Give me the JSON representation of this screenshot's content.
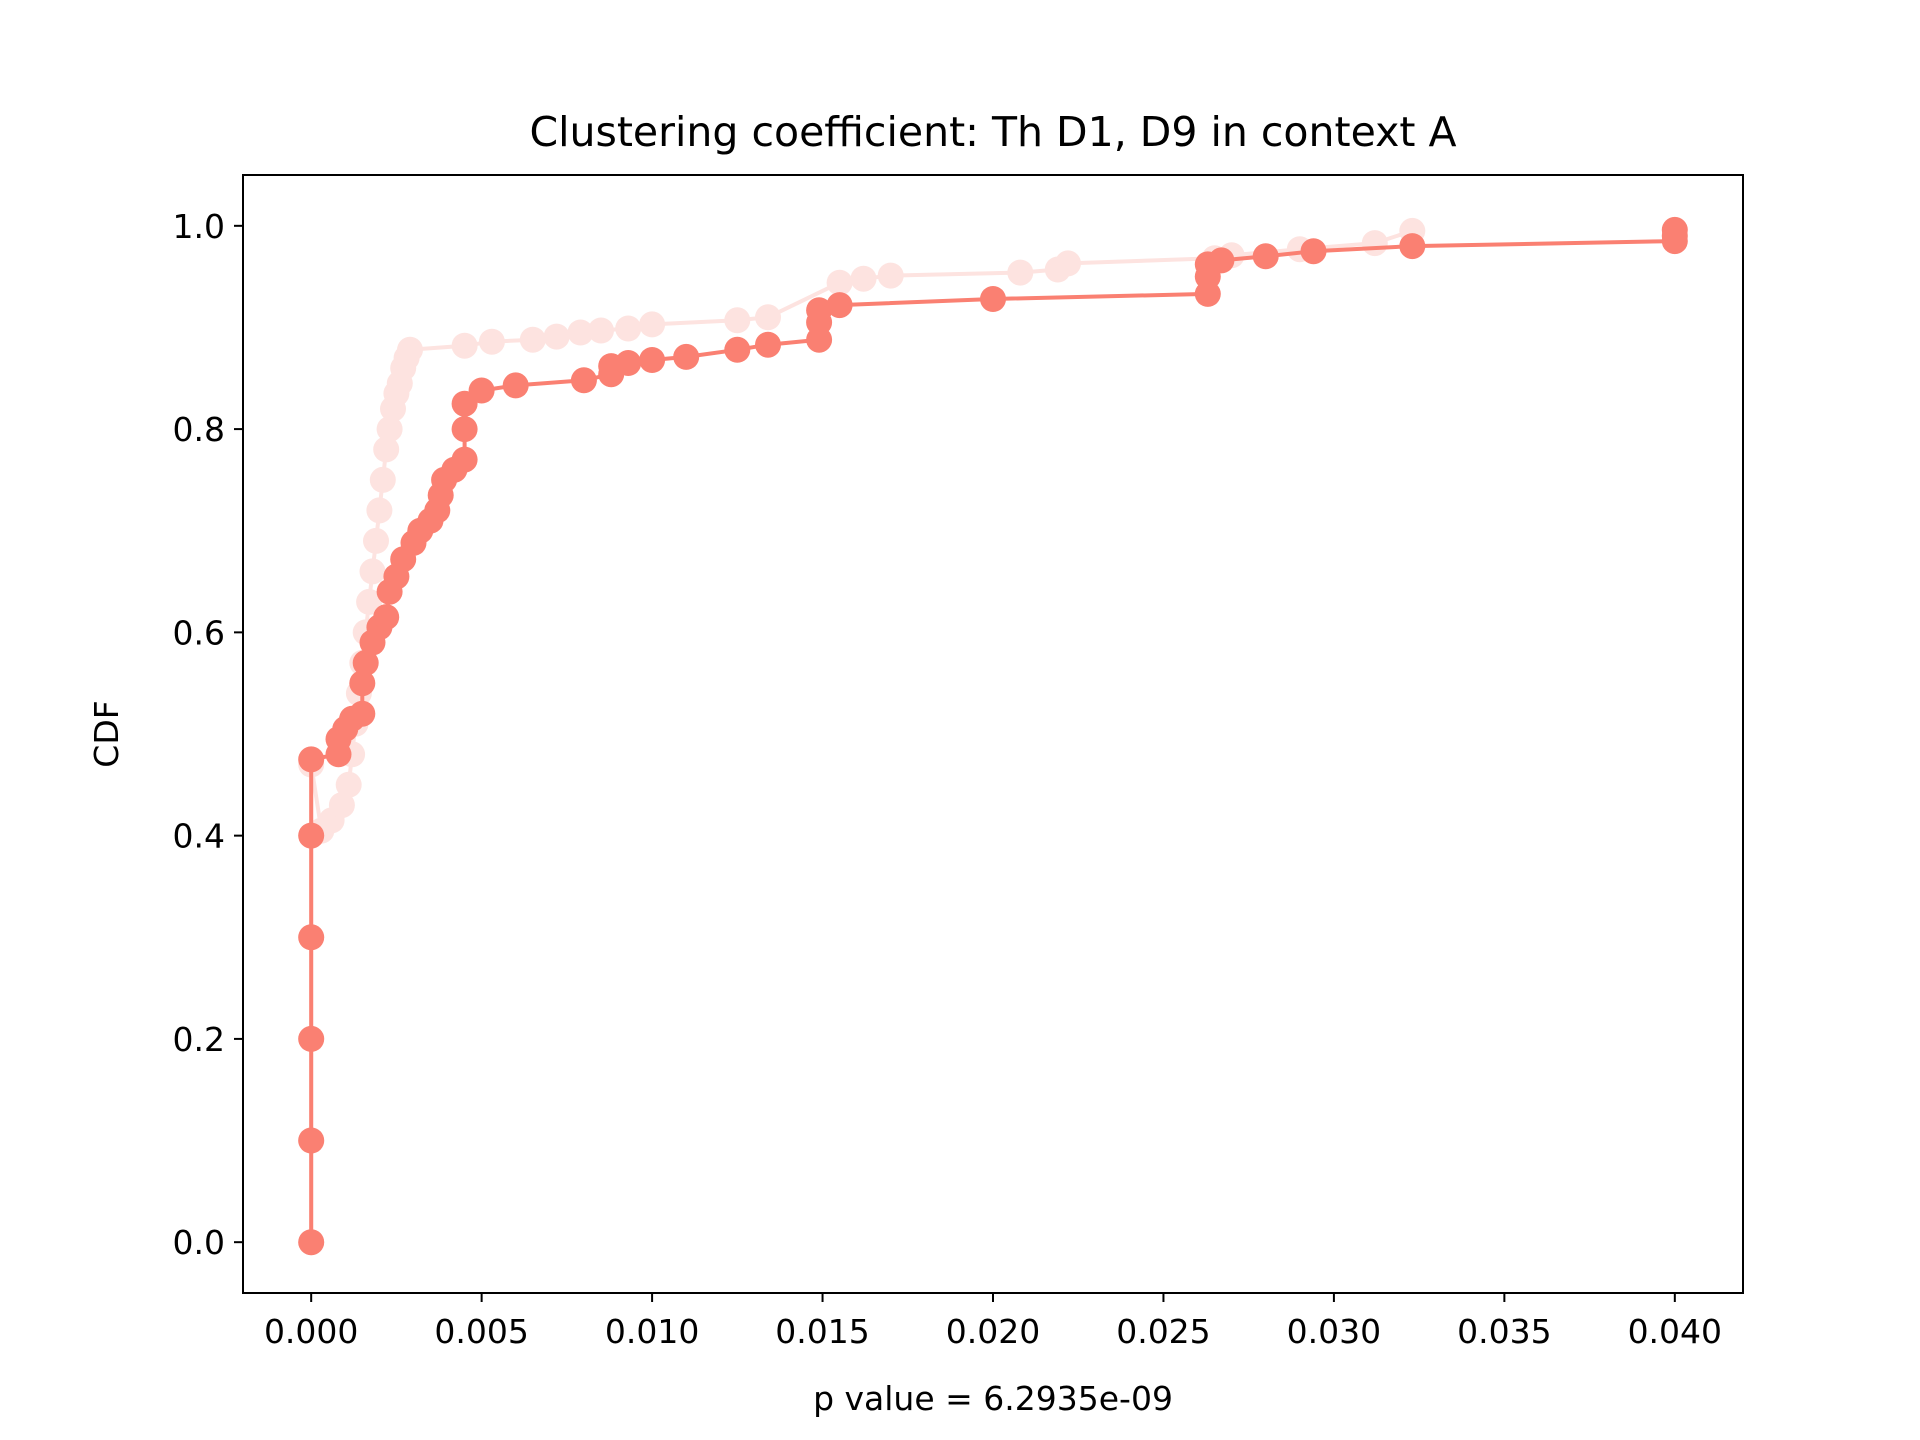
{
  "chart_data": {
    "type": "line",
    "title": "Clustering coefficient: Th D1, D9 in context A",
    "xlabel": "p value = 6.2935e-09",
    "ylabel": "CDF",
    "xlim": [
      -0.002,
      0.042
    ],
    "ylim": [
      -0.05,
      1.05
    ],
    "xticks": [
      0.0,
      0.005,
      0.01,
      0.015,
      0.02,
      0.025,
      0.03,
      0.035,
      0.04
    ],
    "xtick_labels": [
      "0.000",
      "0.005",
      "0.010",
      "0.015",
      "0.020",
      "0.025",
      "0.030",
      "0.035",
      "0.040"
    ],
    "yticks": [
      0.0,
      0.2,
      0.4,
      0.6,
      0.8,
      1.0
    ],
    "ytick_labels": [
      "0.0",
      "0.2",
      "0.4",
      "0.6",
      "0.8",
      "1.0"
    ],
    "grid": false,
    "legend": "none",
    "series": [
      {
        "color": "#fde3e0",
        "points": [
          [
            0.0,
            0.0
          ],
          [
            0.0,
            0.1
          ],
          [
            0.0,
            0.2
          ],
          [
            0.0,
            0.3
          ],
          [
            0.0,
            0.4
          ],
          [
            0.0,
            0.47
          ],
          [
            0.0003,
            0.405
          ],
          [
            0.0006,
            0.415
          ],
          [
            0.0009,
            0.43
          ],
          [
            0.0011,
            0.45
          ],
          [
            0.0012,
            0.48
          ],
          [
            0.0013,
            0.51
          ],
          [
            0.0014,
            0.54
          ],
          [
            0.0015,
            0.57
          ],
          [
            0.0016,
            0.6
          ],
          [
            0.0017,
            0.63
          ],
          [
            0.0018,
            0.66
          ],
          [
            0.0019,
            0.69
          ],
          [
            0.002,
            0.72
          ],
          [
            0.0021,
            0.75
          ],
          [
            0.0022,
            0.78
          ],
          [
            0.0023,
            0.8
          ],
          [
            0.0024,
            0.82
          ],
          [
            0.0025,
            0.835
          ],
          [
            0.0026,
            0.845
          ],
          [
            0.0027,
            0.86
          ],
          [
            0.0028,
            0.87
          ],
          [
            0.0029,
            0.878
          ],
          [
            0.0045,
            0.882
          ],
          [
            0.0053,
            0.886
          ],
          [
            0.0065,
            0.888
          ],
          [
            0.0072,
            0.891
          ],
          [
            0.0079,
            0.895
          ],
          [
            0.0085,
            0.897
          ],
          [
            0.0093,
            0.899
          ],
          [
            0.01,
            0.903
          ],
          [
            0.0125,
            0.907
          ],
          [
            0.0134,
            0.91
          ],
          [
            0.0155,
            0.944
          ],
          [
            0.0162,
            0.948
          ],
          [
            0.017,
            0.951
          ],
          [
            0.0208,
            0.954
          ],
          [
            0.0219,
            0.957
          ],
          [
            0.0222,
            0.963
          ],
          [
            0.0265,
            0.968
          ],
          [
            0.027,
            0.971
          ],
          [
            0.029,
            0.977
          ],
          [
            0.0312,
            0.983
          ],
          [
            0.0323,
            0.995
          ]
        ]
      },
      {
        "color": "#fa8072",
        "points": [
          [
            0.0,
            0.0
          ],
          [
            0.0,
            0.1
          ],
          [
            0.0,
            0.2
          ],
          [
            0.0,
            0.3
          ],
          [
            0.0,
            0.4
          ],
          [
            0.0,
            0.475
          ],
          [
            0.0008,
            0.48
          ],
          [
            0.0008,
            0.495
          ],
          [
            0.001,
            0.505
          ],
          [
            0.0012,
            0.515
          ],
          [
            0.0015,
            0.52
          ],
          [
            0.0015,
            0.55
          ],
          [
            0.0016,
            0.57
          ],
          [
            0.0018,
            0.59
          ],
          [
            0.002,
            0.605
          ],
          [
            0.0022,
            0.615
          ],
          [
            0.0023,
            0.64
          ],
          [
            0.0025,
            0.655
          ],
          [
            0.0027,
            0.672
          ],
          [
            0.003,
            0.688
          ],
          [
            0.0032,
            0.7
          ],
          [
            0.0035,
            0.71
          ],
          [
            0.0037,
            0.72
          ],
          [
            0.0038,
            0.735
          ],
          [
            0.0039,
            0.75
          ],
          [
            0.0042,
            0.76
          ],
          [
            0.0045,
            0.77
          ],
          [
            0.0045,
            0.8
          ],
          [
            0.0045,
            0.825
          ],
          [
            0.005,
            0.838
          ],
          [
            0.006,
            0.843
          ],
          [
            0.008,
            0.848
          ],
          [
            0.0088,
            0.854
          ],
          [
            0.0088,
            0.862
          ],
          [
            0.0093,
            0.865
          ],
          [
            0.01,
            0.868
          ],
          [
            0.011,
            0.871
          ],
          [
            0.0125,
            0.878
          ],
          [
            0.0134,
            0.883
          ],
          [
            0.0149,
            0.888
          ],
          [
            0.0149,
            0.905
          ],
          [
            0.0149,
            0.917
          ],
          [
            0.0155,
            0.922
          ],
          [
            0.02,
            0.928
          ],
          [
            0.0263,
            0.933
          ],
          [
            0.0263,
            0.95
          ],
          [
            0.0263,
            0.962
          ],
          [
            0.0267,
            0.966
          ],
          [
            0.028,
            0.97
          ],
          [
            0.0294,
            0.975
          ],
          [
            0.0323,
            0.98
          ],
          [
            0.04,
            0.985
          ],
          [
            0.04,
            0.99
          ],
          [
            0.04,
            0.996
          ]
        ]
      }
    ]
  }
}
